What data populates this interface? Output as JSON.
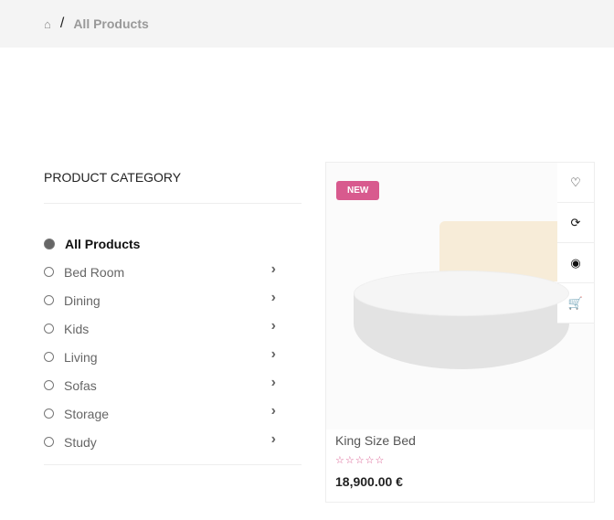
{
  "breadcrumb": {
    "home_icon": "home-icon",
    "separator": "/",
    "current": "All Products"
  },
  "sidebar": {
    "title": "PRODUCT CATEGORY",
    "items": [
      {
        "label": "All Products",
        "active": true
      },
      {
        "label": "Bed Room"
      },
      {
        "label": "Dining"
      },
      {
        "label": "Kids"
      },
      {
        "label": "Living"
      },
      {
        "label": "Sofas"
      },
      {
        "label": "Storage"
      },
      {
        "label": "Study"
      }
    ]
  },
  "product": {
    "badge": "NEW",
    "name": "King Size Bed",
    "rating": 0,
    "stars": "☆☆☆☆☆",
    "price": "18,900.00 €",
    "actions": [
      "heart-icon",
      "refresh-icon",
      "eye-icon",
      "cart-icon"
    ],
    "accent": "#d85a8e"
  }
}
